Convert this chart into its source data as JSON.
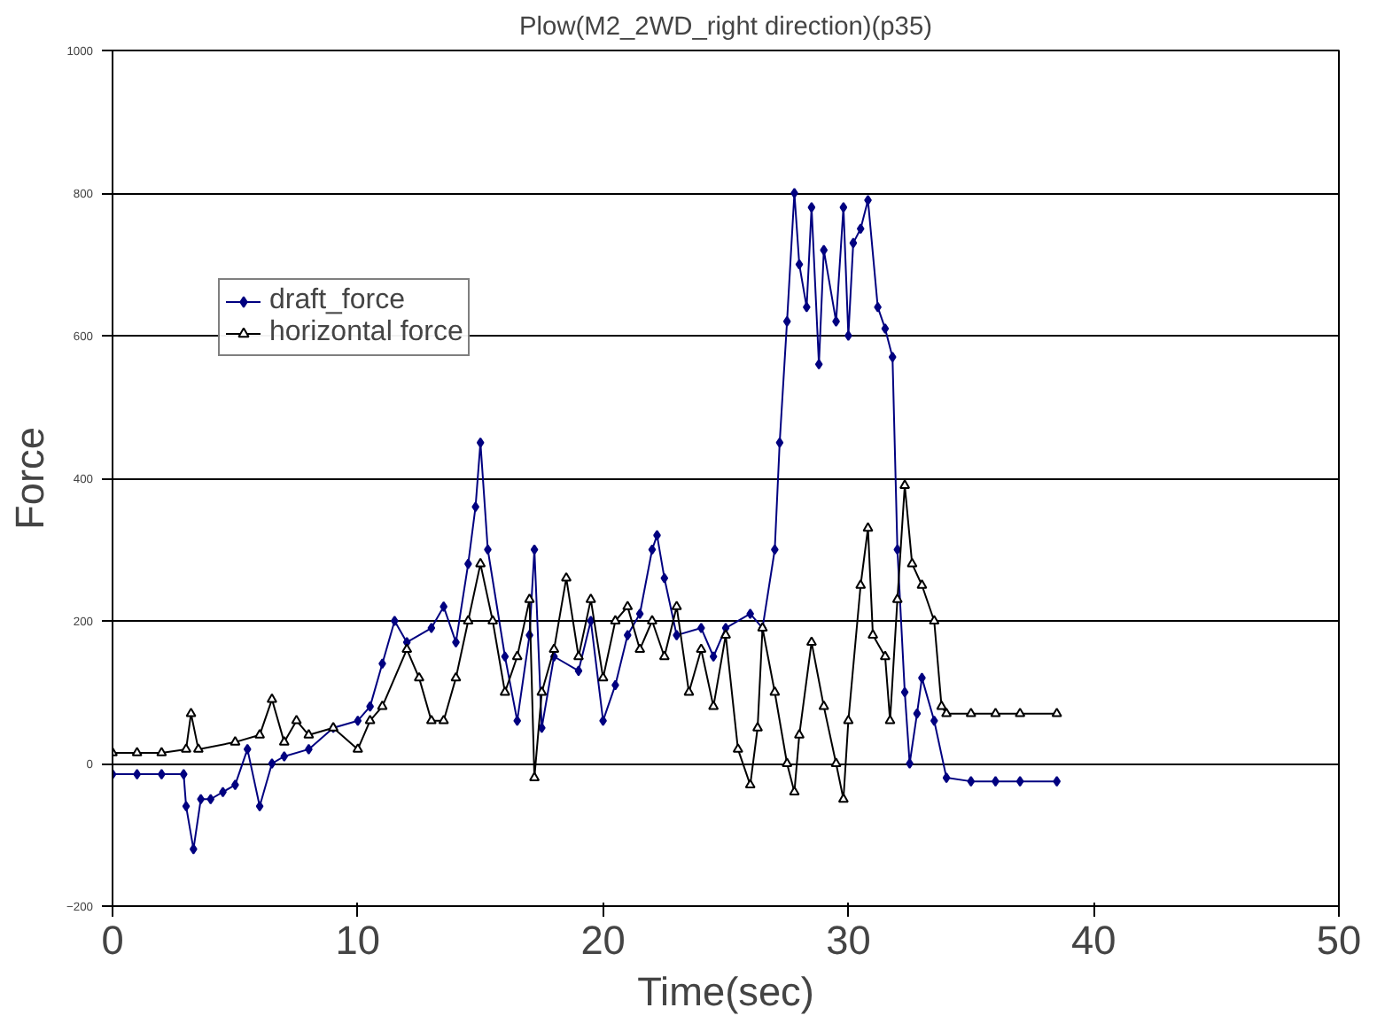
{
  "chart_data": {
    "type": "line",
    "title": "Plow(M2_2WD_right direction)(p35)",
    "xlabel": "Time(sec)",
    "ylabel": "Force",
    "xlim": [
      0,
      50
    ],
    "xticks": [
      0,
      10,
      20,
      30,
      40,
      50
    ],
    "ylim": [
      -200,
      1000
    ],
    "yticks": [
      -200,
      0,
      200,
      400,
      600,
      800,
      1000
    ],
    "grid": "y",
    "legend": "top left",
    "line_style": "solid",
    "series": [
      {
        "name": "draft_force",
        "color": "#000080",
        "marker": "diamond",
        "x": [
          0,
          1,
          2,
          2.9,
          3,
          3.3,
          3.6,
          4,
          4.5,
          5,
          5.5,
          6,
          6.5,
          7,
          8,
          9,
          10,
          10.5,
          11,
          11.5,
          12,
          13,
          13.5,
          14,
          14.5,
          14.8,
          15,
          15.3,
          16,
          16.5,
          17,
          17.2,
          17.5,
          18,
          19,
          19.5,
          20,
          20.5,
          21,
          21.5,
          22,
          22.2,
          22.5,
          23,
          24,
          24.5,
          25,
          26,
          26.5,
          27,
          27.2,
          27.5,
          27.8,
          28,
          28.3,
          28.5,
          28.8,
          29,
          29.5,
          29.8,
          30,
          30.2,
          30.5,
          30.8,
          31.2,
          31.5,
          31.8,
          32,
          32.3,
          32.5,
          32.8,
          33,
          33.5,
          34,
          35,
          36,
          37,
          38.5
        ],
        "values": [
          -15,
          -15,
          -15,
          -15,
          -60,
          -120,
          -50,
          -50,
          -40,
          -30,
          20,
          -60,
          0,
          10,
          20,
          50,
          60,
          80,
          140,
          200,
          170,
          190,
          220,
          170,
          280,
          360,
          450,
          300,
          150,
          60,
          180,
          300,
          50,
          150,
          130,
          200,
          60,
          110,
          180,
          210,
          300,
          320,
          260,
          180,
          190,
          150,
          190,
          210,
          190,
          300,
          450,
          620,
          800,
          700,
          640,
          780,
          560,
          720,
          620,
          780,
          600,
          730,
          750,
          790,
          640,
          610,
          570,
          300,
          100,
          0,
          70,
          120,
          60,
          -20,
          -25,
          -25,
          -25,
          -25
        ]
      },
      {
        "name": "horizontal force",
        "color": "#000000",
        "marker": "triangle",
        "x": [
          0,
          1,
          2,
          3,
          3.2,
          3.5,
          5,
          6,
          6.5,
          7,
          7.5,
          8,
          9,
          10,
          10.5,
          11,
          12,
          12.5,
          13,
          13.5,
          14,
          14.5,
          15,
          15.5,
          16,
          16.5,
          17,
          17.2,
          17.5,
          18,
          18.5,
          19,
          19.5,
          20,
          20.5,
          21,
          21.5,
          22,
          22.5,
          23,
          23.5,
          24,
          24.5,
          25,
          25.5,
          26,
          26.3,
          26.5,
          27,
          27.5,
          27.8,
          28,
          28.5,
          29,
          29.5,
          29.8,
          30,
          30.5,
          30.8,
          31,
          31.5,
          31.7,
          32,
          32.3,
          32.6,
          33,
          33.5,
          33.8,
          34,
          35,
          36,
          37,
          38.5
        ],
        "values": [
          15,
          15,
          15,
          20,
          70,
          20,
          30,
          40,
          90,
          30,
          60,
          40,
          50,
          20,
          60,
          80,
          160,
          120,
          60,
          60,
          120,
          200,
          280,
          200,
          100,
          150,
          230,
          -20,
          100,
          160,
          260,
          150,
          230,
          120,
          200,
          220,
          160,
          200,
          150,
          220,
          100,
          160,
          80,
          180,
          20,
          -30,
          50,
          190,
          100,
          0,
          -40,
          40,
          170,
          80,
          0,
          -50,
          60,
          250,
          330,
          180,
          150,
          60,
          230,
          390,
          280,
          250,
          200,
          80,
          70,
          70,
          70,
          70,
          70
        ]
      }
    ]
  }
}
